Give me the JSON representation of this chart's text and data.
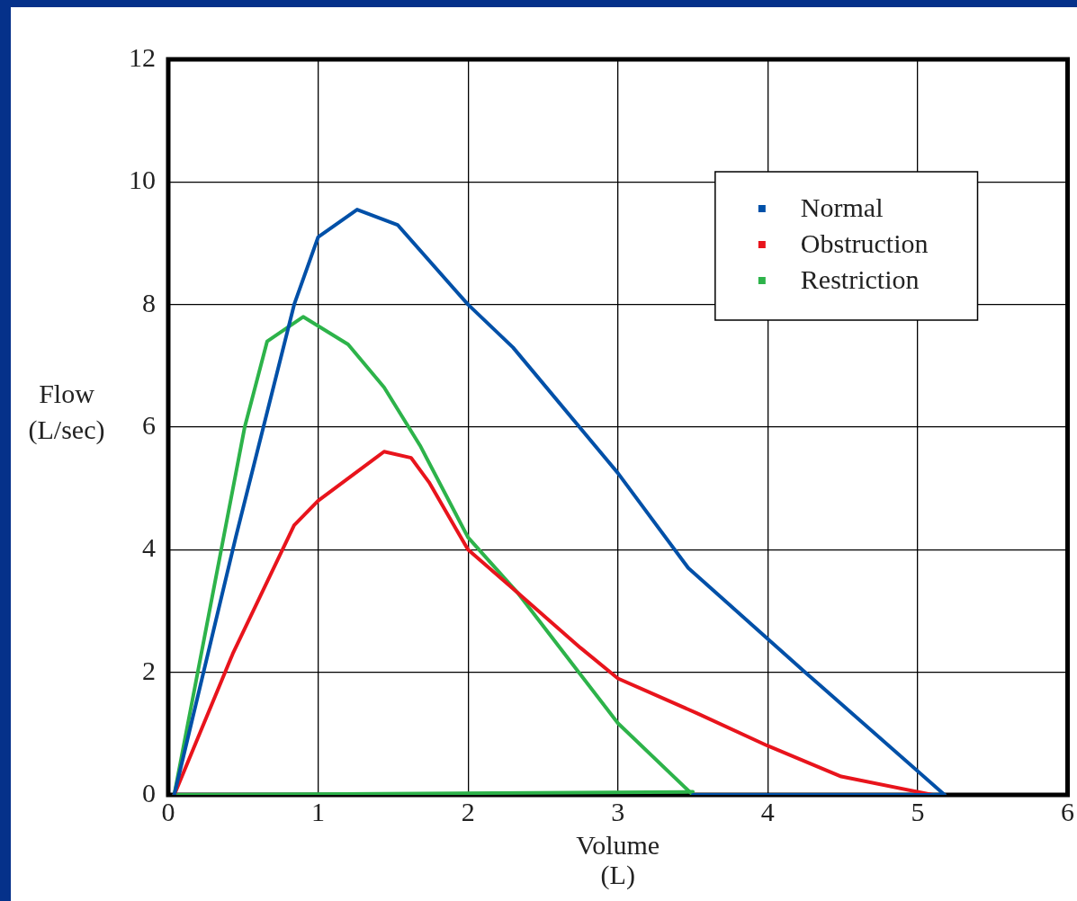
{
  "chart_data": {
    "type": "line",
    "xlabel": "Volume\n(L)",
    "ylabel": "Flow\n(L/sec)",
    "xlim": [
      0,
      6
    ],
    "ylim": [
      0,
      12
    ],
    "xticks": [
      0,
      1,
      2,
      3,
      4,
      5,
      6
    ],
    "yticks": [
      0,
      2,
      4,
      6,
      8,
      10,
      12
    ],
    "grid": true,
    "legend": "top right",
    "marker": "none",
    "line_style": "solid",
    "series": [
      {
        "name": "Normal",
        "color": "#0050a8",
        "x": [
          0.04,
          0.45,
          0.84,
          1.0,
          1.26,
          1.53,
          2.0,
          2.3,
          3.0,
          3.47,
          4.25,
          5.18
        ],
        "values": [
          0,
          4.2,
          8.0,
          9.1,
          9.55,
          9.3,
          8.0,
          7.3,
          5.25,
          3.7,
          2.0,
          0
        ]
      },
      {
        "color": "#0050a8",
        "x": [
          5.18,
          3.5
        ],
        "values": [
          0,
          0
        ]
      },
      {
        "name": "Obstruction",
        "color": "#e8141c",
        "x": [
          0.04,
          0.43,
          0.84,
          1.0,
          1.44,
          1.62,
          1.74,
          2.0,
          2.33,
          2.75,
          3.0,
          3.53,
          4.0,
          4.49,
          5.1
        ],
        "values": [
          0,
          2.3,
          4.4,
          4.8,
          5.6,
          5.5,
          5.1,
          4.0,
          3.3,
          2.4,
          1.9,
          1.33,
          0.8,
          0.3,
          0
        ]
      },
      {
        "name": "Restriction",
        "color": "#2db34a",
        "x": [
          0.04,
          0.51,
          0.66,
          0.9,
          1.2,
          1.44,
          1.68,
          2.0,
          2.33,
          3.0,
          3.5
        ],
        "values": [
          0,
          6.0,
          7.4,
          7.8,
          7.35,
          6.65,
          5.7,
          4.2,
          3.3,
          1.17,
          0
        ]
      },
      {
        "color": "#2db34a",
        "x": [
          3.5,
          0.04
        ],
        "values": [
          0.05,
          0
        ]
      }
    ]
  }
}
